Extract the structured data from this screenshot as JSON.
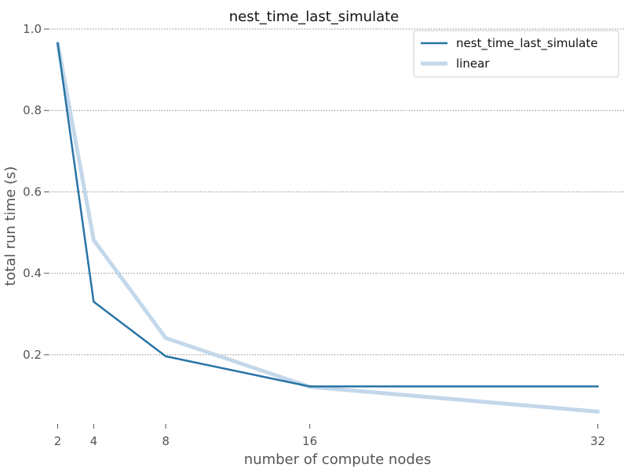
{
  "chart_data": {
    "type": "line",
    "title": "nest_time_last_simulate",
    "xlabel": "number of compute nodes",
    "ylabel": "total run time (s)",
    "x": [
      2,
      4,
      8,
      16,
      32
    ],
    "x_ticks": [
      "2",
      "4",
      "8",
      "16",
      "32"
    ],
    "y_ticks": [
      "0.2",
      "0.4",
      "0.6",
      "0.8",
      "1.0"
    ],
    "y_tick_values": [
      0.2,
      0.4,
      0.6,
      0.8,
      1.0
    ],
    "xlim": [
      1.5,
      33.5
    ],
    "ylim": [
      0.03,
      1.0
    ],
    "grid": "horizontal-dotted",
    "legend_position": "top-right",
    "series": [
      {
        "name": "nest_time_last_simulate",
        "values": [
          0.965,
          0.33,
          0.196,
          0.122,
          0.122
        ],
        "color": "#2874a6"
      },
      {
        "name": "linear",
        "values": [
          0.965,
          0.482,
          0.241,
          0.121,
          0.06
        ],
        "color": "#c3d8ea"
      }
    ]
  }
}
